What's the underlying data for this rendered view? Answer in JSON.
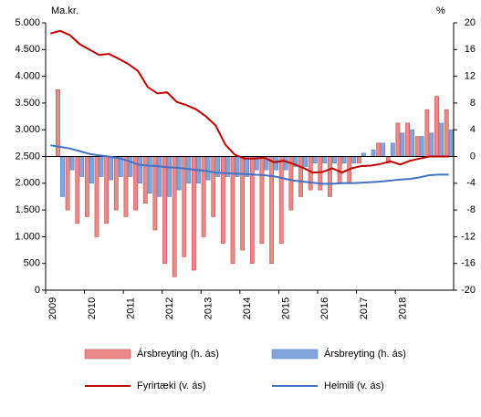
{
  "chart_data": {
    "type": "bar-line",
    "y_unit": "Ma.kr.",
    "y2_unit": "%",
    "categories": [
      "2009",
      null,
      null,
      null,
      "2010",
      null,
      null,
      null,
      "2011",
      null,
      null,
      null,
      "2012",
      null,
      null,
      null,
      "2013",
      null,
      null,
      null,
      "2014",
      null,
      null,
      null,
      "2015",
      null,
      null,
      null,
      "2016",
      null,
      null,
      null,
      "2017",
      null,
      null,
      null,
      "2018",
      null,
      null,
      null,
      null,
      null
    ],
    "ylim": [
      0,
      5000
    ],
    "yticks": [
      {
        "value": 0,
        "label": "0"
      },
      {
        "value": 500,
        "label": "500"
      },
      {
        "value": 1000,
        "label": "1.000"
      },
      {
        "value": 1500,
        "label": "1.500"
      },
      {
        "value": 2000,
        "label": "2.000"
      },
      {
        "value": 2500,
        "label": "2.500"
      },
      {
        "value": 3000,
        "label": "3.000"
      },
      {
        "value": 3500,
        "label": "3.500"
      },
      {
        "value": 4000,
        "label": "4.000"
      },
      {
        "value": 4500,
        "label": "4.500"
      },
      {
        "value": 5000,
        "label": "5.000"
      }
    ],
    "y2lim": [
      -20,
      20
    ],
    "y2ticks": [
      -20,
      -16,
      -12,
      -8,
      -4,
      0,
      4,
      8,
      12,
      16,
      20
    ],
    "series": [
      {
        "name": "Ársbreyting (h. ás)",
        "type": "bar",
        "axis": "y2",
        "color": "#e8898a",
        "stroke": "#c0504d",
        "values": [
          0,
          10,
          -8,
          -10,
          -9,
          -12,
          -10,
          -8,
          -9,
          -8,
          -7,
          -11,
          -16,
          -18,
          -15,
          -17,
          -12,
          -9,
          -13,
          -16,
          -14,
          -16,
          -13,
          -16,
          -13,
          -8,
          -6,
          -5,
          -5,
          -6,
          -4,
          -4,
          -1,
          0,
          2,
          -1,
          5,
          5,
          3,
          7,
          9,
          7
        ]
      },
      {
        "name": "Ársbreyting (h. ás)",
        "type": "bar",
        "axis": "y2",
        "color": "#86a4dc",
        "stroke": "#4f81bd",
        "values": [
          0,
          -6,
          -2,
          -3,
          -4,
          -3,
          -3.5,
          -3,
          -3,
          -4,
          -5.5,
          -6,
          -6,
          -5,
          -4,
          -4,
          -3.5,
          -3,
          -3,
          -3,
          -3,
          -2,
          -2,
          -2,
          -2,
          -1.5,
          -1.5,
          -1,
          -1,
          -1,
          -1,
          -1,
          0.5,
          1,
          2,
          2,
          3.5,
          4,
          3,
          3.5,
          5,
          4
        ]
      },
      {
        "name": "Fyrirtæki (v. ás)",
        "type": "line",
        "axis": "y",
        "color": "#c00000",
        "values": [
          4800,
          4850,
          4770,
          4600,
          4500,
          4400,
          4420,
          4330,
          4230,
          4100,
          3800,
          3680,
          3700,
          3520,
          3460,
          3380,
          3250,
          3080,
          2720,
          2530,
          2460,
          2460,
          2480,
          2390,
          2420,
          2360,
          2290,
          2200,
          2210,
          2280,
          2200,
          2280,
          2320,
          2330,
          2360,
          2410,
          2350,
          2420,
          2460,
          2500,
          2500,
          2500
        ]
      },
      {
        "name": "Heimili (v. ás)",
        "type": "line",
        "axis": "y",
        "color": "#4472c4",
        "values": [
          2710,
          2680,
          2650,
          2600,
          2550,
          2520,
          2500,
          2470,
          2420,
          2350,
          2330,
          2320,
          2300,
          2290,
          2270,
          2250,
          2230,
          2200,
          2190,
          2180,
          2170,
          2160,
          2150,
          2130,
          2090,
          2050,
          2030,
          2010,
          1990,
          1990,
          2000,
          2000,
          2010,
          2020,
          2030,
          2050,
          2070,
          2080,
          2110,
          2150,
          2160,
          2160
        ]
      }
    ]
  }
}
